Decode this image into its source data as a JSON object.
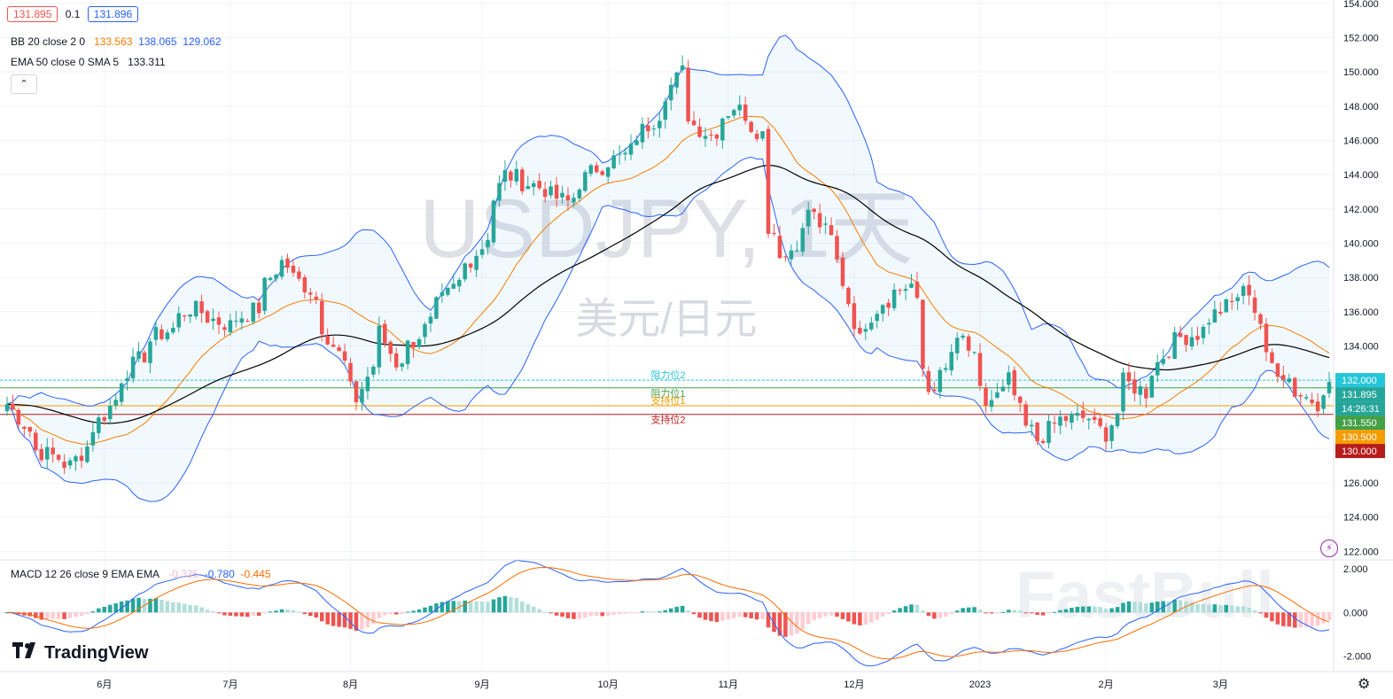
{
  "header": {
    "bid": "131.895",
    "spread": "0.1",
    "ask": "131.896",
    "bb_label": "BB 20 close 2 0",
    "bb_values": [
      "133.563",
      "138.065",
      "129.062"
    ],
    "ema_label": "EMA 50 close 0 SMA 5",
    "ema_value": "133.311",
    "collapse_icon": "chevron-up-icon"
  },
  "watermark": {
    "symbol": "USDJPY, 1天",
    "name": "美元/日元",
    "brand": "FastBull"
  },
  "macd_legend": {
    "label": "MACD 12 26 close 9 EMA EMA",
    "values": [
      "-0.335",
      "-0.780",
      "-0.445"
    ]
  },
  "brand": "TradingView",
  "colors": {
    "up": "#26a69a",
    "down": "#ef5350",
    "bb_basis": "#f57c00",
    "bb_band": "#2962ff",
    "ema": "#000000",
    "macd": "#2962ff",
    "signal": "#ff6d00"
  },
  "chart_data": {
    "type": "candlestick",
    "title": "USDJPY, 1天",
    "y_axis": {
      "ticks": [
        "154.000",
        "152.000",
        "150.000",
        "148.000",
        "146.000",
        "144.000",
        "142.000",
        "140.000",
        "138.000",
        "136.000",
        "134.000",
        "132.000",
        "130.000",
        "128.000",
        "126.000",
        "124.000",
        "122.000"
      ],
      "range": [
        121.5,
        154.2
      ]
    },
    "x_axis": {
      "ticks": [
        "6月",
        "7月",
        "8月",
        "9月",
        "10月",
        "11月",
        "12月",
        "2023",
        "2月",
        "3月"
      ]
    },
    "price_markers": [
      {
        "label": "132.000",
        "value": 132.0,
        "color": "#26c6da"
      },
      {
        "label": "131.895",
        "value": 131.895,
        "color": "#26a69a"
      },
      {
        "label": "14:26:31",
        "value": 131.895,
        "color": "#26a69a"
      },
      {
        "label": "131.550",
        "value": 131.55,
        "color": "#43a047"
      },
      {
        "label": "130.500",
        "value": 130.5,
        "color": "#f59d00"
      },
      {
        "label": "130.000",
        "value": 130.0,
        "color": "#b71c1c"
      }
    ],
    "levels": [
      {
        "label": "阻力位2",
        "value": 132.0,
        "color": "#26c6da"
      },
      {
        "label": "阻力位1",
        "value": 131.55,
        "color": "#43a047"
      },
      {
        "label": "支持位1",
        "value": 130.5,
        "color": "#f59d00"
      },
      {
        "label": "支持位2",
        "value": 130.0,
        "color": "#b71c1c"
      }
    ],
    "close_anchors": [
      [
        "2022-05-09",
        130.6
      ],
      [
        "2022-05-16",
        127.9
      ],
      [
        "2022-05-24",
        127.0
      ],
      [
        "2022-06-01",
        130.0
      ],
      [
        "2022-06-07",
        132.6
      ],
      [
        "2022-06-14",
        134.6
      ],
      [
        "2022-06-17",
        135.0
      ],
      [
        "2022-06-22",
        136.2
      ],
      [
        "2022-07-01",
        135.2
      ],
      [
        "2022-07-08",
        136.2
      ],
      [
        "2022-07-14",
        138.9
      ],
      [
        "2022-07-21",
        137.3
      ],
      [
        "2022-07-28",
        133.5
      ],
      [
        "2022-08-02",
        130.9
      ],
      [
        "2022-08-08",
        134.8
      ],
      [
        "2022-08-11",
        133.0
      ],
      [
        "2022-08-16",
        134.3
      ],
      [
        "2022-08-24",
        137.0
      ],
      [
        "2022-09-01",
        139.8
      ],
      [
        "2022-09-07",
        144.0
      ],
      [
        "2022-09-14",
        143.4
      ],
      [
        "2022-09-22",
        142.4
      ],
      [
        "2022-09-29",
        144.4
      ],
      [
        "2022-10-06",
        145.1
      ],
      [
        "2022-10-13",
        147.2
      ],
      [
        "2022-10-20",
        150.0
      ],
      [
        "2022-10-21",
        147.5
      ],
      [
        "2022-10-27",
        146.3
      ],
      [
        "2022-11-02",
        148.0
      ],
      [
        "2022-11-09",
        146.4
      ],
      [
        "2022-11-10",
        141.0
      ],
      [
        "2022-11-15",
        139.2
      ],
      [
        "2022-11-21",
        142.0
      ],
      [
        "2022-11-28",
        138.9
      ],
      [
        "2022-12-02",
        134.3
      ],
      [
        "2022-12-08",
        136.6
      ],
      [
        "2022-12-15",
        137.6
      ],
      [
        "2022-12-20",
        131.4
      ],
      [
        "2022-12-28",
        134.4
      ],
      [
        "2023-01-03",
        130.6
      ],
      [
        "2023-01-09",
        132.0
      ],
      [
        "2023-01-12",
        129.2
      ],
      [
        "2023-01-16",
        128.5
      ],
      [
        "2023-01-20",
        129.7
      ],
      [
        "2023-01-27",
        129.8
      ],
      [
        "2023-02-01",
        128.9
      ],
      [
        "2023-02-06",
        131.9
      ],
      [
        "2023-02-10",
        131.3
      ],
      [
        "2023-02-17",
        134.3
      ],
      [
        "2023-02-23",
        134.7
      ],
      [
        "2023-03-01",
        136.1
      ],
      [
        "2023-03-08",
        137.3
      ],
      [
        "2023-03-09",
        136.1
      ],
      [
        "2023-03-13",
        133.2
      ],
      [
        "2023-03-20",
        131.3
      ],
      [
        "2023-03-24",
        130.7
      ],
      [
        "2023-03-28",
        131.895
      ]
    ],
    "macd_panel": {
      "y_ticks": [
        "2.000",
        "0.000",
        "-2.000"
      ],
      "range": [
        -2.7,
        2.4
      ],
      "last": {
        "macd": -0.78,
        "signal": -0.445,
        "histogram": -0.335
      }
    }
  }
}
